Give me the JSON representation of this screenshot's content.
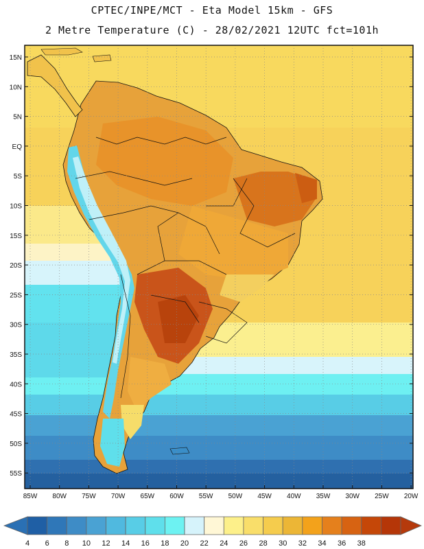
{
  "title_line1": "CPTEC/INPE/MCT -  Eta Model 15km - GFS",
  "title_line2": "2 Metre Temperature (C) - 28/02/2021 12UTC fct=101h",
  "map": {
    "lat_labels": [
      "15N",
      "10N",
      "5N",
      "EQ",
      "5S",
      "10S",
      "15S",
      "20S",
      "25S",
      "30S",
      "35S",
      "40S",
      "45S",
      "50S",
      "55S"
    ],
    "lon_labels": [
      "85W",
      "80W",
      "75W",
      "70W",
      "65W",
      "60W",
      "55W",
      "50W",
      "45W",
      "40W",
      "35W",
      "30W",
      "25W",
      "20W"
    ]
  },
  "colorbar": {
    "levels": [
      "4",
      "6",
      "8",
      "10",
      "12",
      "14",
      "16",
      "18",
      "20",
      "22",
      "24",
      "26",
      "28",
      "30",
      "32",
      "34",
      "36",
      "38"
    ],
    "colors": [
      "#1f5fa5",
      "#2f77b8",
      "#3e8cc6",
      "#4aa2d3",
      "#50b9df",
      "#58cde6",
      "#5fdfeb",
      "#6df2f2",
      "#d6f3fb",
      "#fff7d6",
      "#fdf08a",
      "#f9de6a",
      "#f5cc4d",
      "#ecb636",
      "#f3a21b",
      "#e5801c",
      "#d76312",
      "#c54708",
      "#b53608"
    ],
    "low_color": "#2a70b4",
    "high_color": "#b53a0c"
  }
}
